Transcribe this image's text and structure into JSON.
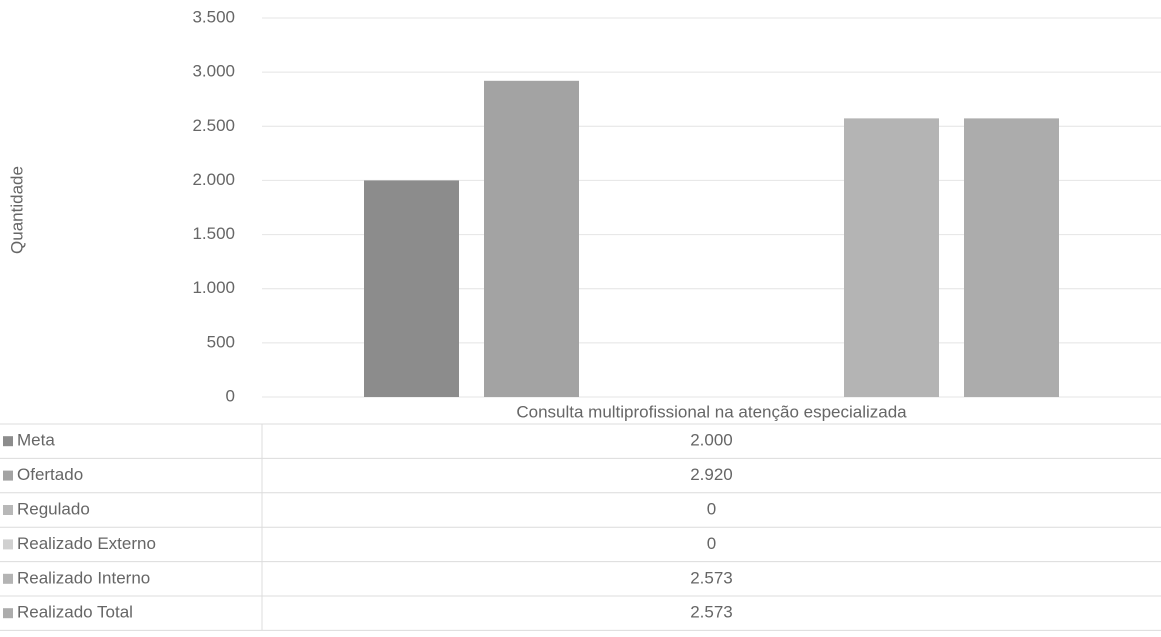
{
  "chart_data": {
    "type": "bar",
    "y_label": "Quantidade",
    "categories": [
      "Consulta multiprofissional na atenção especializada"
    ],
    "series": [
      {
        "name": "Meta",
        "color": "#8c8c8c",
        "values": [
          2000
        ],
        "value_labels": [
          "2.000"
        ]
      },
      {
        "name": "Ofertado",
        "color": "#a3a3a3",
        "values": [
          2920
        ],
        "value_labels": [
          "2.920"
        ]
      },
      {
        "name": "Regulado",
        "color": "#b8b8b8",
        "values": [
          0
        ],
        "value_labels": [
          "0"
        ]
      },
      {
        "name": "Realizado Externo",
        "color": "#d0d0d0",
        "values": [
          0
        ],
        "value_labels": [
          "0"
        ]
      },
      {
        "name": "Realizado Interno",
        "color": "#b4b4b4",
        "values": [
          2573
        ],
        "value_labels": [
          "2.573"
        ]
      },
      {
        "name": "Realizado Total",
        "color": "#acacac",
        "values": [
          2573
        ],
        "value_labels": [
          "2.573"
        ]
      }
    ],
    "ylim": [
      0,
      3500
    ],
    "yticks": [
      0,
      500,
      {
        "value": 1000,
        "label": "1.000"
      },
      {
        "value": 1500,
        "label": "1.500"
      },
      {
        "value": 2000,
        "label": "2.000"
      },
      {
        "value": 2500,
        "label": "2.500"
      },
      {
        "value": 3000,
        "label": "3.000"
      },
      {
        "value": 3500,
        "label": "3.500"
      }
    ],
    "grid": true
  }
}
